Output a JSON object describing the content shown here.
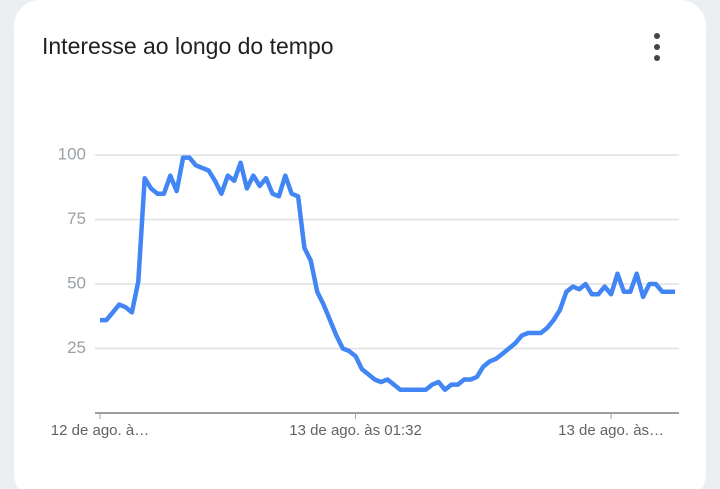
{
  "chart_data": {
    "type": "line",
    "title": "Interesse ao longo do tempo",
    "categories": [
      "12 de ago. à…",
      null,
      null,
      null,
      null,
      null,
      null,
      null,
      null,
      null,
      null,
      null,
      null,
      null,
      null,
      null,
      null,
      null,
      null,
      null,
      null,
      null,
      null,
      null,
      null,
      null,
      null,
      null,
      null,
      null,
      null,
      null,
      null,
      null,
      null,
      null,
      null,
      null,
      null,
      null,
      "13 de ago. às 01:32",
      null,
      null,
      null,
      null,
      null,
      null,
      null,
      null,
      null,
      null,
      null,
      null,
      null,
      null,
      null,
      null,
      null,
      null,
      null,
      null,
      null,
      null,
      null,
      null,
      null,
      null,
      null,
      null,
      null,
      null,
      null,
      null,
      null,
      null,
      null,
      null,
      null,
      null,
      null,
      "13 de ago. às…",
      null,
      null,
      null,
      null,
      null,
      null,
      null,
      null,
      null,
      null
    ],
    "values": [
      36,
      36,
      39,
      42,
      41,
      39,
      51,
      91,
      87,
      85,
      85,
      92,
      86,
      99,
      99,
      96,
      95,
      94,
      90,
      85,
      92,
      90,
      97,
      87,
      92,
      88,
      91,
      85,
      84,
      92,
      85,
      84,
      64,
      59,
      47,
      42,
      36,
      30,
      25,
      24,
      22,
      17,
      15,
      13,
      12,
      13,
      11,
      9,
      9,
      9,
      9,
      9,
      11,
      12,
      9,
      11,
      11,
      13,
      13,
      14,
      18,
      20,
      21,
      23,
      25,
      27,
      30,
      31,
      31,
      31,
      33,
      36,
      40,
      47,
      49,
      48,
      50,
      46,
      46,
      49,
      46,
      54,
      47,
      47,
      54,
      45,
      50,
      50,
      47,
      47,
      47
    ],
    "color": "#4285f4",
    "ylim": [
      0,
      100
    ],
    "yticks": [
      25,
      50,
      75,
      100
    ],
    "grid": true
  }
}
